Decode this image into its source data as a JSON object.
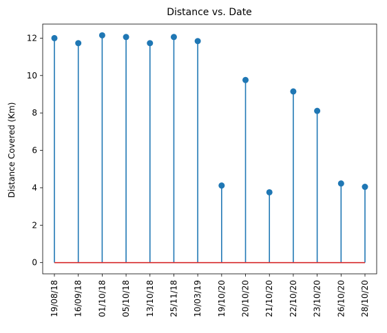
{
  "chart_data": {
    "type": "stem",
    "title": "Distance vs. Date",
    "xlabel": "",
    "ylabel": "Distance Covered (Km)",
    "categories": [
      "19/08/18",
      "16/09/18",
      "01/10/18",
      "05/10/18",
      "13/10/18",
      "25/11/18",
      "10/03/19",
      "19/10/20",
      "20/10/20",
      "21/10/20",
      "22/10/20",
      "23/10/20",
      "26/10/20",
      "28/10/20"
    ],
    "values": [
      12.0,
      11.73,
      12.15,
      12.06,
      11.73,
      12.06,
      11.84,
      4.12,
      9.76,
      3.76,
      9.15,
      8.11,
      4.23,
      4.05
    ],
    "ylim": [
      -0.6,
      12.75
    ],
    "yticks": [
      0,
      2,
      4,
      6,
      8,
      10,
      12
    ],
    "grid": false,
    "colors": {
      "stem": "#1f77b4",
      "marker": "#1f77b4",
      "baseline": "#d62728"
    }
  }
}
